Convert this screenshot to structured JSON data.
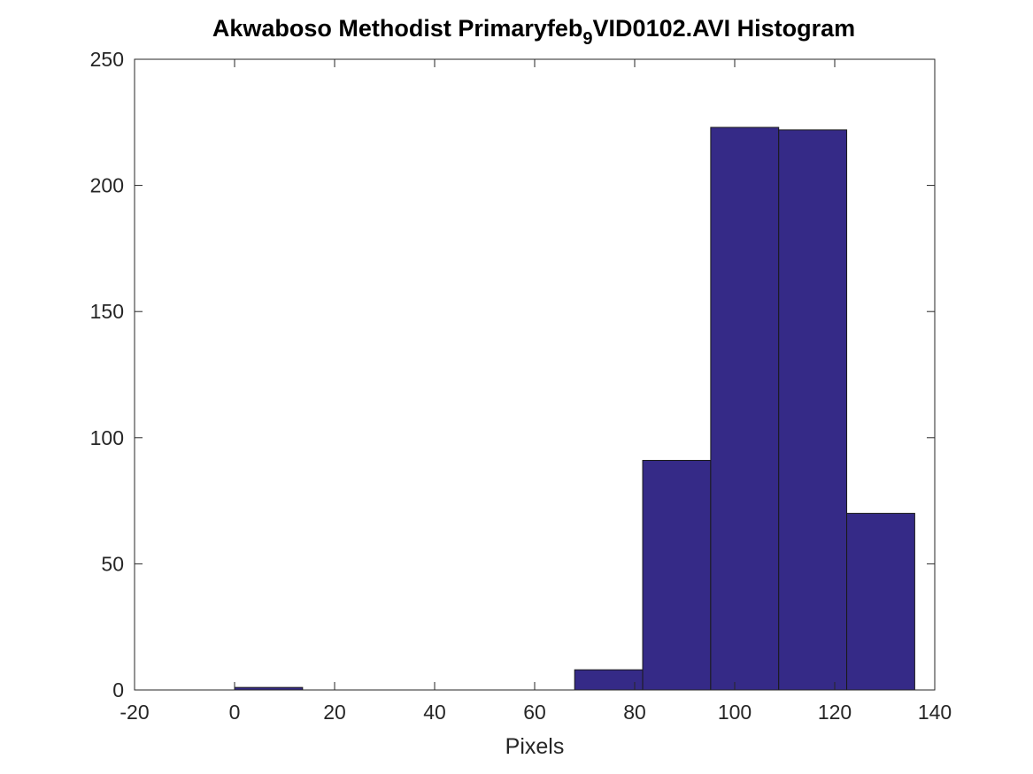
{
  "chart_data": {
    "type": "bar",
    "title_main": "Akwaboso Methodist Primaryfeb",
    "title_sub": "9",
    "title_tail": "VID0102.AVI Histogram",
    "xlabel": "Pixels",
    "ylabel": "",
    "xlim": [
      -20,
      140
    ],
    "ylim": [
      0,
      250
    ],
    "xticks": [
      -20,
      0,
      20,
      40,
      60,
      80,
      100,
      120,
      140
    ],
    "yticks": [
      0,
      50,
      100,
      150,
      200,
      250
    ],
    "bin_edges": [
      0,
      13.6,
      27.2,
      40.8,
      54.4,
      68.0,
      81.6,
      95.2,
      108.8,
      122.4,
      136.0
    ],
    "values": [
      1,
      0,
      0,
      0,
      0,
      8,
      91,
      223,
      222,
      70
    ],
    "bar_color": "#352a87",
    "grid": false
  }
}
